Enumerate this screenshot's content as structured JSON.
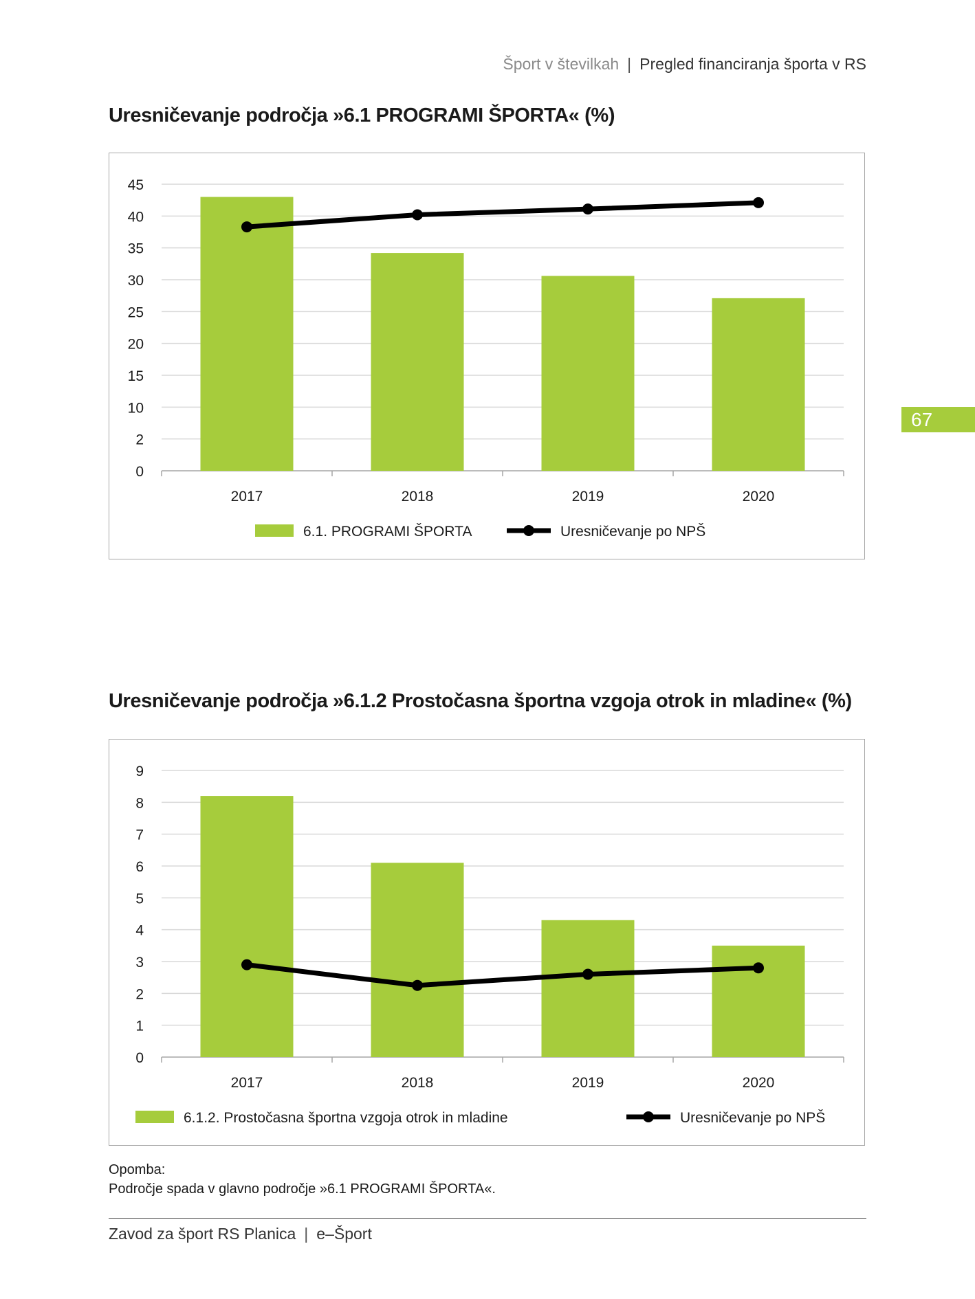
{
  "header": {
    "publication": "Šport v številkah",
    "separator": "|",
    "section": "Pregled financiranja športa v RS"
  },
  "page_number": "67",
  "colors": {
    "bar": "#a6cc3c",
    "line": "#000000",
    "grid": "#d9d9d9",
    "axis": "#a6a6a6",
    "page_tab": "#a6cc3c"
  },
  "chart_data": [
    {
      "type": "bar",
      "title": "Uresničevanje področja »6.1 PROGRAMI ŠPORTA« (%)",
      "categories": [
        "2017",
        "2018",
        "2019",
        "2020"
      ],
      "y_ticks": [
        "0",
        "2",
        "10",
        "15",
        "20",
        "25",
        "30",
        "35",
        "40",
        "45"
      ],
      "ylim": [
        0,
        45
      ],
      "series": [
        {
          "name": "6.1. PROGRAMI ŠPORTA",
          "kind": "bar",
          "values": [
            43,
            34.2,
            30.6,
            27.1
          ]
        },
        {
          "name": "Uresničevanje po NPŠ",
          "kind": "line",
          "values": [
            38.3,
            40.2,
            41.1,
            42.1
          ]
        }
      ],
      "grid": true,
      "legend": "bottom"
    },
    {
      "type": "bar",
      "title": "Uresničevanje področja »6.1.2 Prostočasna športna vzgoja otrok in mladine« (%)",
      "categories": [
        "2017",
        "2018",
        "2019",
        "2020"
      ],
      "y_ticks": [
        "0",
        "1",
        "2",
        "3",
        "4",
        "5",
        "6",
        "7",
        "8",
        "9"
      ],
      "ylim": [
        0,
        9
      ],
      "series": [
        {
          "name": "6.1.2. Prostočasna športna vzgoja otrok in mladine",
          "kind": "bar",
          "values": [
            8.2,
            6.1,
            4.3,
            3.5
          ]
        },
        {
          "name": "Uresničevanje po NPŠ",
          "kind": "line",
          "values": [
            2.9,
            2.25,
            2.6,
            2.8
          ]
        }
      ],
      "grid": true,
      "legend": "bottom"
    }
  ],
  "note": {
    "label": "Opomba:",
    "text": "Področje spada v glavno področje »6.1 PROGRAMI ŠPORTA«."
  },
  "footer": {
    "org": "Zavod za šport RS Planica",
    "separator": "|",
    "product": "e–Šport"
  }
}
